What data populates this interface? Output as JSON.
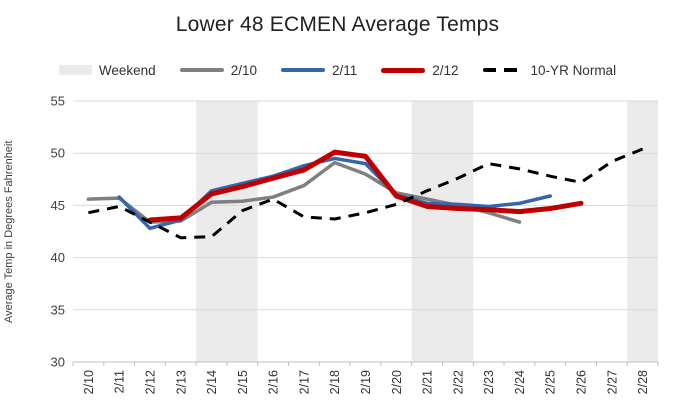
{
  "title": "Lower 48 ECMEN Average Temps",
  "y_axis_title": "Average Temp in Degrees Fahrenheit",
  "legend": {
    "items": [
      {
        "label": "Weekend",
        "type": "band",
        "color": "#EBEBEB"
      },
      {
        "label": "2/10",
        "type": "line",
        "color": "#7F7F7F"
      },
      {
        "label": "2/11",
        "type": "line",
        "color": "#3366AD"
      },
      {
        "label": "2/12",
        "type": "line",
        "color": "#C00000"
      },
      {
        "label": "10-YR Normal",
        "type": "dash",
        "color": "#000000"
      }
    ]
  },
  "chart_data": {
    "type": "line",
    "title": "Lower 48 ECMEN Average Temps",
    "xlabel": "",
    "ylabel": "Average Temp in Degrees Fahrenheit",
    "categories": [
      "2/10",
      "2/11",
      "2/12",
      "2/13",
      "2/14",
      "2/15",
      "2/16",
      "2/17",
      "2/18",
      "2/19",
      "2/20",
      "2/21",
      "2/22",
      "2/23",
      "2/24",
      "2/25",
      "2/26",
      "2/27",
      "2/28"
    ],
    "y_axis": {
      "min": 30,
      "max": 55,
      "step": 5,
      "ticks": [
        "55",
        "50",
        "45",
        "40",
        "35",
        "30"
      ]
    },
    "weekend_bands": [
      [
        4,
        6
      ],
      [
        11,
        13
      ],
      [
        18,
        19
      ]
    ],
    "series": [
      {
        "name": "2/10",
        "color": "#7F7F7F",
        "width": 3.5,
        "dash": "",
        "start_index": 0,
        "values": [
          45.6,
          45.7,
          43.4,
          43.5,
          45.3,
          45.4,
          45.8,
          46.9,
          49.1,
          48.0,
          46.2,
          45.6,
          45.0,
          44.3,
          43.4
        ]
      },
      {
        "name": "2/11",
        "color": "#3366AD",
        "width": 3.5,
        "dash": "",
        "start_index": 1,
        "values": [
          45.8,
          42.8,
          43.6,
          46.4,
          47.1,
          47.8,
          48.8,
          49.5,
          49.0,
          46.0,
          45.2,
          45.1,
          44.9,
          45.2,
          45.9
        ]
      },
      {
        "name": "2/12",
        "color": "#C00000",
        "width": 5,
        "dash": "",
        "start_index": 2,
        "values": [
          43.6,
          43.8,
          46.1,
          46.8,
          47.6,
          48.4,
          50.1,
          49.7,
          45.9,
          44.9,
          44.7,
          44.6,
          44.4,
          44.7,
          45.2
        ]
      },
      {
        "name": "10-YR Normal",
        "color": "#000000",
        "width": 3,
        "dash": "11 8",
        "start_index": 0,
        "values": [
          44.3,
          44.9,
          43.4,
          41.9,
          42.0,
          44.5,
          45.6,
          43.9,
          43.7,
          44.3,
          45.1,
          46.4,
          47.6,
          49.0,
          48.5,
          47.8,
          47.2,
          49.2,
          50.4
        ]
      }
    ],
    "colors": {
      "weekend_band": "#EBEBEB",
      "gridline": "#D9D9D9",
      "axis_line": "#BFBFBF",
      "tick_label": "#404040",
      "background": "#FFFFFF"
    },
    "legend_position": "top",
    "grid": true
  }
}
